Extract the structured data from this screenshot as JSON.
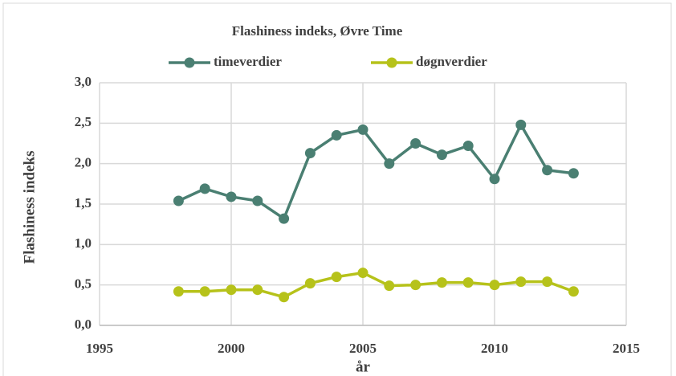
{
  "chart_data": {
    "type": "line",
    "title": "Flashiness indeks, Øvre Time",
    "x_label": "år",
    "y_label": "Flashiness indeks",
    "legend": "top",
    "grid": true,
    "x": [
      1998,
      1999,
      2000,
      2001,
      2002,
      2003,
      2004,
      2005,
      2006,
      2007,
      2008,
      2009,
      2010,
      2011,
      2012,
      2013
    ],
    "series": [
      {
        "name": "timeverdier",
        "color": "#4a7f72",
        "values": [
          1.54,
          1.69,
          1.59,
          1.54,
          1.32,
          2.13,
          2.35,
          2.42,
          2.0,
          2.25,
          2.11,
          2.22,
          1.81,
          2.48,
          1.92,
          1.88
        ]
      },
      {
        "name": "døgnverdier",
        "color": "#b6c21a",
        "values": [
          0.42,
          0.42,
          0.44,
          0.44,
          0.35,
          0.52,
          0.6,
          0.65,
          0.49,
          0.5,
          0.53,
          0.53,
          0.5,
          0.54,
          0.54,
          0.42
        ]
      }
    ],
    "xlim": [
      1995,
      2015
    ],
    "xticks": [
      1995,
      2000,
      2005,
      2010,
      2015
    ],
    "ylim": [
      0,
      3
    ],
    "yticks": [
      {
        "value": 0,
        "label": "0,0"
      },
      {
        "value": 0.5,
        "label": "0,5"
      },
      {
        "value": 1,
        "label": "1,0"
      },
      {
        "value": 1.5,
        "label": "1,5"
      },
      {
        "value": 2,
        "label": "2,0"
      },
      {
        "value": 2.5,
        "label": "2,5"
      },
      {
        "value": 3,
        "label": "3,0"
      }
    ]
  }
}
